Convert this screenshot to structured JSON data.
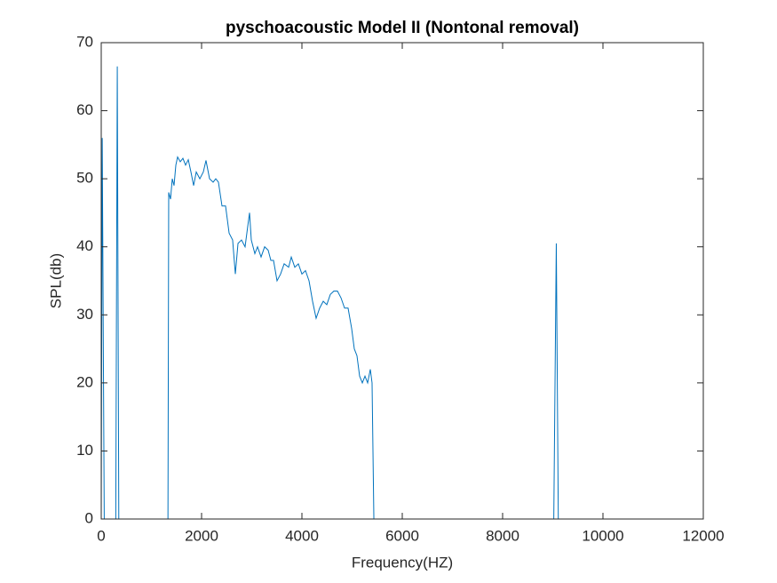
{
  "chart_data": {
    "type": "line",
    "title": "pyschoacoustic Model II (Nontonal removal)",
    "xlabel": "Frequency(HZ)",
    "ylabel": "SPL(db)",
    "x": [
      0,
      20,
      60,
      290,
      320,
      350,
      1330,
      1345,
      1381,
      1416,
      1451,
      1487,
      1522,
      1575,
      1628,
      1681,
      1735,
      1788,
      1841,
      1894,
      1965,
      2035,
      2088,
      2159,
      2230,
      2283,
      2336,
      2407,
      2478,
      2549,
      2619,
      2673,
      2726,
      2796,
      2867,
      2920,
      2956,
      2991,
      3062,
      3115,
      3186,
      3257,
      3327,
      3381,
      3434,
      3504,
      3575,
      3646,
      3735,
      3788,
      3858,
      3929,
      4000,
      4071,
      4142,
      4212,
      4283,
      4354,
      4425,
      4496,
      4566,
      4637,
      4708,
      4779,
      4850,
      4920,
      4991,
      5044,
      5097,
      5150,
      5204,
      5257,
      5310,
      5363,
      5398,
      5434,
      9020,
      9070,
      9110,
      12000
    ],
    "series": [
      {
        "color": "#0072bd",
        "values": [
          0,
          56,
          0,
          0,
          66.5,
          0,
          0,
          48,
          47,
          50,
          49,
          52,
          53.2,
          52.5,
          53,
          52,
          52.8,
          51,
          49,
          51,
          50,
          51,
          52.7,
          50,
          49.5,
          50,
          49.5,
          46,
          46,
          42,
          41,
          36,
          40.5,
          41,
          40,
          43,
          45,
          41,
          39,
          40,
          38.5,
          40,
          39.5,
          38,
          38,
          35,
          36,
          37.5,
          37,
          38.5,
          37,
          37.5,
          36,
          36.5,
          35,
          32,
          29.5,
          31,
          32,
          31.5,
          33,
          33.5,
          33.5,
          32.5,
          31,
          31,
          28,
          25,
          24,
          21,
          20,
          21,
          20,
          22,
          20,
          0,
          0,
          40.5,
          0,
          0
        ]
      }
    ],
    "xlim": [
      0,
      12000
    ],
    "xticks": [
      0,
      2000,
      4000,
      6000,
      8000,
      10000,
      12000
    ],
    "ylim": [
      0,
      70
    ],
    "yticks": [
      0,
      10,
      20,
      30,
      40,
      50,
      60,
      70
    ],
    "grid": false
  }
}
